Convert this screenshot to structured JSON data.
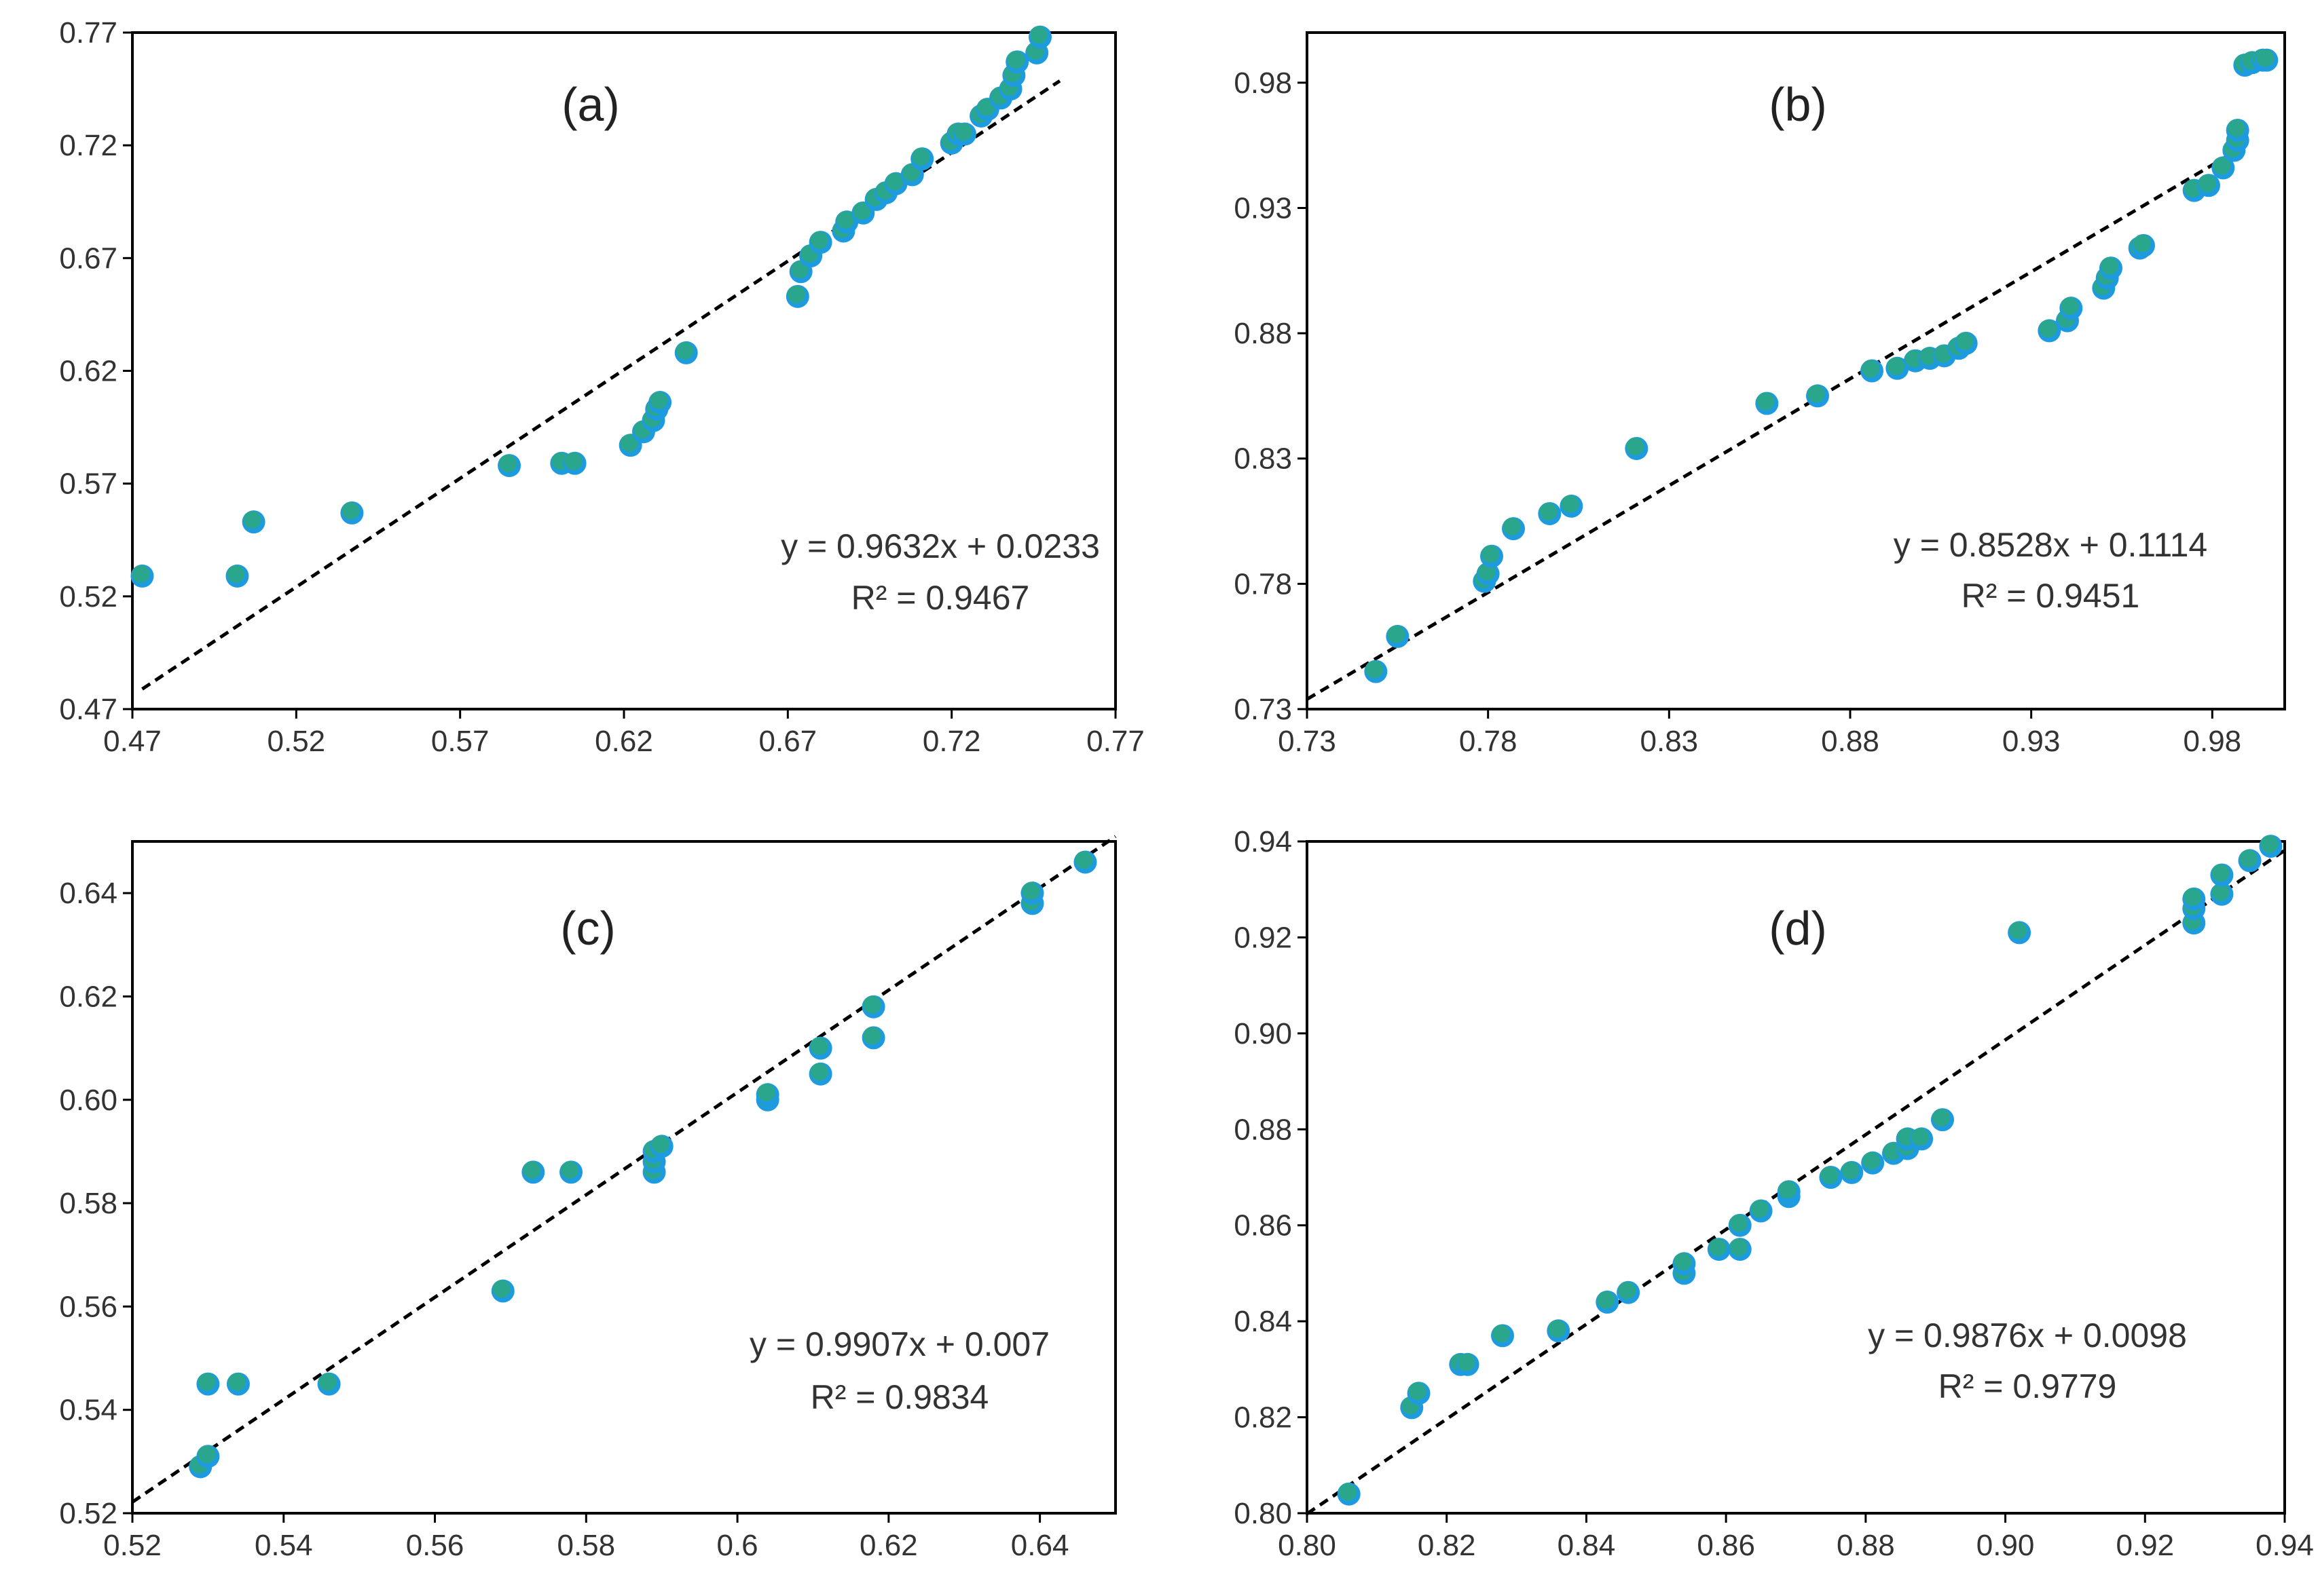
{
  "figure": {
    "colors": {
      "point_edge": "#1e9be0",
      "point_fill": "#2aa68d",
      "trendline": "#000000"
    }
  },
  "chart_data": [
    {
      "type": "scatter",
      "panel_label": "(a)",
      "xlim": [
        0.47,
        0.77
      ],
      "ylim": [
        0.47,
        0.77
      ],
      "xticks": [
        "0.47",
        "0.52",
        "0.57",
        "0.62",
        "0.67",
        "0.72",
        "0.77"
      ],
      "yticks": [
        "0.47",
        "0.52",
        "0.57",
        "0.62",
        "0.67",
        "0.72",
        "0.77"
      ],
      "equation": "y = 0.9632x + 0.0233",
      "r_squared": "R² = 0.9467",
      "trendline": {
        "slope": 0.9632,
        "intercept": 0.0233,
        "x_range": [
          0.473,
          0.753
        ]
      },
      "points": [
        [
          0.473,
          0.529
        ],
        [
          0.502,
          0.529
        ],
        [
          0.507,
          0.553
        ],
        [
          0.537,
          0.557
        ],
        [
          0.585,
          0.578
        ],
        [
          0.601,
          0.579
        ],
        [
          0.605,
          0.579
        ],
        [
          0.622,
          0.587
        ],
        [
          0.626,
          0.593
        ],
        [
          0.629,
          0.598
        ],
        [
          0.63,
          0.603
        ],
        [
          0.631,
          0.606
        ],
        [
          0.639,
          0.628
        ],
        [
          0.673,
          0.653
        ],
        [
          0.674,
          0.664
        ],
        [
          0.677,
          0.671
        ],
        [
          0.68,
          0.677
        ],
        [
          0.687,
          0.682
        ],
        [
          0.688,
          0.686
        ],
        [
          0.693,
          0.69
        ],
        [
          0.697,
          0.696
        ],
        [
          0.7,
          0.699
        ],
        [
          0.703,
          0.703
        ],
        [
          0.708,
          0.707
        ],
        [
          0.711,
          0.714
        ],
        [
          0.72,
          0.721
        ],
        [
          0.722,
          0.725
        ],
        [
          0.724,
          0.725
        ],
        [
          0.729,
          0.733
        ],
        [
          0.731,
          0.736
        ],
        [
          0.735,
          0.741
        ],
        [
          0.738,
          0.745
        ],
        [
          0.739,
          0.751
        ],
        [
          0.74,
          0.757
        ],
        [
          0.746,
          0.761
        ],
        [
          0.747,
          0.768
        ]
      ]
    },
    {
      "type": "scatter",
      "panel_label": "(b)",
      "xlim": [
        0.73,
        1.0
      ],
      "ylim": [
        0.73,
        1.0
      ],
      "xticks": [
        "0.73",
        "0.78",
        "0.83",
        "0.88",
        "0.93",
        "0.98"
      ],
      "yticks": [
        "0.73",
        "0.78",
        "0.83",
        "0.88",
        "0.93",
        "0.98"
      ],
      "equation": "y = 0.8528x + 0.1114",
      "r_squared": "R² = 0.9451",
      "trendline": {
        "slope": 0.8528,
        "intercept": 0.1114,
        "x_range": [
          0.73,
          0.985
        ]
      },
      "points": [
        [
          0.749,
          0.745
        ],
        [
          0.755,
          0.759
        ],
        [
          0.779,
          0.781
        ],
        [
          0.78,
          0.784
        ],
        [
          0.781,
          0.791
        ],
        [
          0.787,
          0.802
        ],
        [
          0.797,
          0.808
        ],
        [
          0.803,
          0.811
        ],
        [
          0.821,
          0.834
        ],
        [
          0.857,
          0.852
        ],
        [
          0.871,
          0.855
        ],
        [
          0.886,
          0.865
        ],
        [
          0.893,
          0.866
        ],
        [
          0.898,
          0.869
        ],
        [
          0.902,
          0.87
        ],
        [
          0.906,
          0.871
        ],
        [
          0.91,
          0.874
        ],
        [
          0.912,
          0.876
        ],
        [
          0.935,
          0.881
        ],
        [
          0.94,
          0.885
        ],
        [
          0.941,
          0.89
        ],
        [
          0.95,
          0.898
        ],
        [
          0.951,
          0.902
        ],
        [
          0.952,
          0.906
        ],
        [
          0.96,
          0.914
        ],
        [
          0.961,
          0.915
        ],
        [
          0.975,
          0.937
        ],
        [
          0.979,
          0.939
        ],
        [
          0.983,
          0.946
        ],
        [
          0.986,
          0.953
        ],
        [
          0.987,
          0.957
        ],
        [
          0.987,
          0.961
        ],
        [
          0.989,
          0.987
        ],
        [
          0.991,
          0.988
        ],
        [
          0.994,
          0.989
        ],
        [
          0.995,
          0.989
        ]
      ]
    },
    {
      "type": "scatter",
      "panel_label": "(c)",
      "xlim": [
        0.52,
        0.65
      ],
      "ylim": [
        0.52,
        0.65
      ],
      "xticks": [
        "0.52",
        "0.54",
        "0.56",
        "0.58",
        "0.6",
        "0.62",
        "0.64"
      ],
      "yticks": [
        "0.52",
        "0.54",
        "0.56",
        "0.58",
        "0.60",
        "0.62",
        "0.64"
      ],
      "equation": "y = 0.9907x + 0.007",
      "r_squared": "R² = 0.9834",
      "trendline": {
        "slope": 0.9907,
        "intercept": 0.007,
        "x_range": [
          0.52,
          0.65
        ]
      },
      "points": [
        [
          0.529,
          0.529
        ],
        [
          0.53,
          0.531
        ],
        [
          0.53,
          0.545
        ],
        [
          0.534,
          0.545
        ],
        [
          0.546,
          0.545
        ],
        [
          0.569,
          0.563
        ],
        [
          0.573,
          0.586
        ],
        [
          0.578,
          0.586
        ],
        [
          0.589,
          0.586
        ],
        [
          0.589,
          0.588
        ],
        [
          0.589,
          0.59
        ],
        [
          0.59,
          0.591
        ],
        [
          0.604,
          0.6
        ],
        [
          0.604,
          0.601
        ],
        [
          0.611,
          0.605
        ],
        [
          0.611,
          0.61
        ],
        [
          0.618,
          0.612
        ],
        [
          0.618,
          0.618
        ],
        [
          0.639,
          0.638
        ],
        [
          0.639,
          0.64
        ],
        [
          0.646,
          0.646
        ]
      ]
    },
    {
      "type": "scatter",
      "panel_label": "(d)",
      "xlim": [
        0.8,
        0.94
      ],
      "ylim": [
        0.8,
        0.94
      ],
      "xticks": [
        "0.80",
        "0.82",
        "0.84",
        "0.86",
        "0.88",
        "0.90",
        "0.92",
        "0.94"
      ],
      "yticks": [
        "0.80",
        "0.82",
        "0.84",
        "0.86",
        "0.88",
        "0.90",
        "0.92",
        "0.94"
      ],
      "equation": "y = 0.9876x + 0.0098",
      "r_squared": "R² = 0.9779",
      "trendline": {
        "slope": 0.9876,
        "intercept": 0.0098,
        "x_range": [
          0.8,
          0.94
        ]
      },
      "points": [
        [
          0.806,
          0.804
        ],
        [
          0.815,
          0.822
        ],
        [
          0.816,
          0.825
        ],
        [
          0.822,
          0.831
        ],
        [
          0.823,
          0.831
        ],
        [
          0.828,
          0.837
        ],
        [
          0.836,
          0.838
        ],
        [
          0.843,
          0.844
        ],
        [
          0.846,
          0.846
        ],
        [
          0.854,
          0.85
        ],
        [
          0.854,
          0.852
        ],
        [
          0.859,
          0.855
        ],
        [
          0.862,
          0.855
        ],
        [
          0.862,
          0.86
        ],
        [
          0.865,
          0.863
        ],
        [
          0.869,
          0.866
        ],
        [
          0.869,
          0.867
        ],
        [
          0.875,
          0.87
        ],
        [
          0.878,
          0.871
        ],
        [
          0.881,
          0.873
        ],
        [
          0.884,
          0.875
        ],
        [
          0.886,
          0.876
        ],
        [
          0.886,
          0.878
        ],
        [
          0.888,
          0.878
        ],
        [
          0.891,
          0.882
        ],
        [
          0.902,
          0.921
        ],
        [
          0.927,
          0.923
        ],
        [
          0.927,
          0.926
        ],
        [
          0.927,
          0.928
        ],
        [
          0.931,
          0.929
        ],
        [
          0.931,
          0.933
        ],
        [
          0.935,
          0.936
        ],
        [
          0.938,
          0.939
        ]
      ]
    }
  ]
}
